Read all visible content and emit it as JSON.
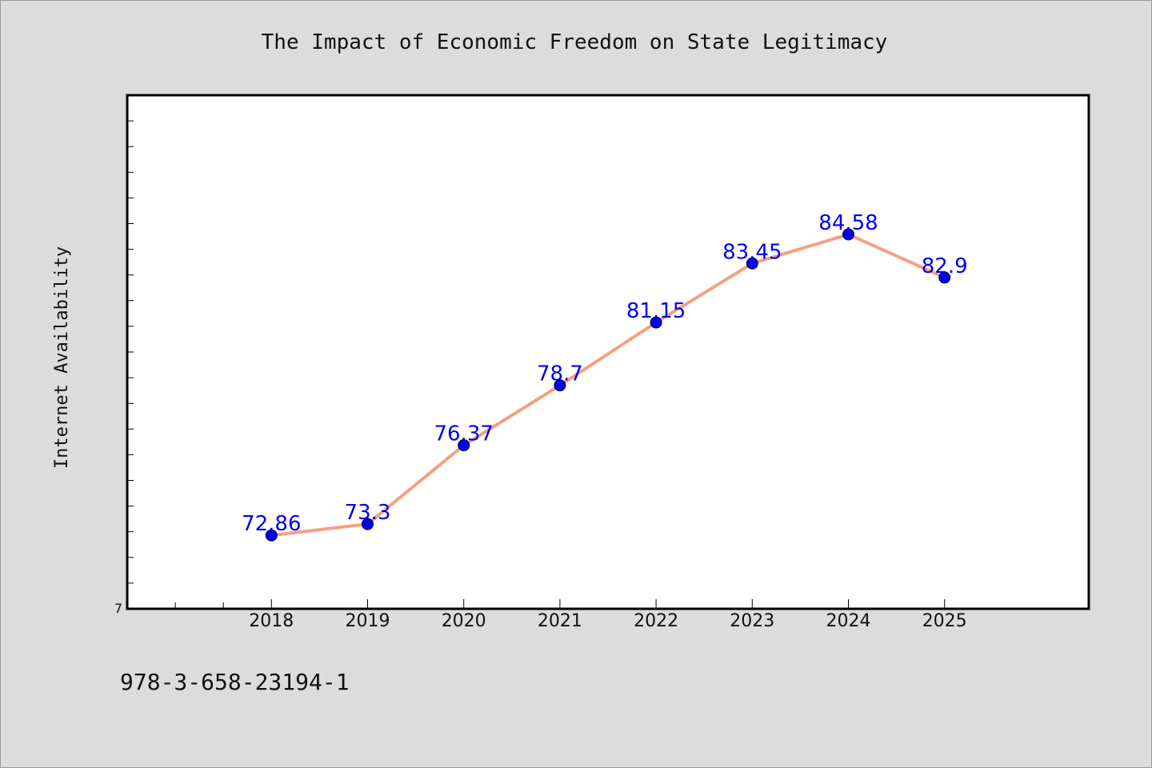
{
  "footer_code": "978-3-658-23194-1",
  "colors": {
    "background": "#dcdcdc",
    "plot_background": "#ffffff",
    "line": "#f5a07f",
    "marker": "#0000ee",
    "data_label": "#0000ee"
  },
  "chart_data": {
    "type": "line",
    "title": "The Impact of Economic Freedom on State Legitimacy",
    "xlabel": "",
    "ylabel": "Internet Availability",
    "categories": [
      "2018",
      "2019",
      "2020",
      "2021",
      "2022",
      "2023",
      "2024",
      "2025"
    ],
    "x_axis_range": [
      2016.5,
      2026.5
    ],
    "x_minor_ticks": [
      2017,
      2017.5
    ],
    "ylim": [
      70,
      90
    ],
    "y_tick_label": "7",
    "y_minor_step": 1,
    "grid": false,
    "legend": "none",
    "series": [
      {
        "values": [
          72.86,
          73.3,
          76.37,
          78.7,
          81.15,
          83.45,
          84.58,
          82.9
        ],
        "data_labels": [
          "72.86",
          "73.3",
          "76.37",
          "78.7",
          "81.15",
          "83.45",
          "84.58",
          "82.9"
        ]
      }
    ]
  }
}
